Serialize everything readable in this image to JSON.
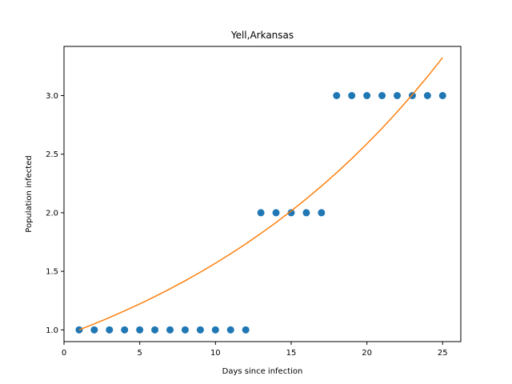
{
  "chart_data": {
    "type": "scatter",
    "title": "Yell,Arkansas",
    "xlabel": "Days since infection",
    "ylabel": "Population infected",
    "xlim": [
      0,
      26.2
    ],
    "ylim": [
      0.9,
      3.42
    ],
    "xticks": [
      0,
      5,
      10,
      15,
      20,
      25
    ],
    "yticks": [
      1.0,
      1.5,
      2.0,
      2.5,
      3.0
    ],
    "xtick_labels": [
      "0",
      "5",
      "10",
      "15",
      "20",
      "25"
    ],
    "ytick_labels": [
      "1.0",
      "1.5",
      "2.0",
      "2.5",
      "3.0"
    ],
    "grid": false,
    "legend": "none",
    "series": [
      {
        "kind": "scatter",
        "color": "#1f77b4",
        "x": [
          1,
          2,
          3,
          4,
          5,
          6,
          7,
          8,
          9,
          10,
          11,
          12,
          13,
          14,
          15,
          16,
          17,
          18,
          19,
          20,
          21,
          22,
          23,
          24,
          25
        ],
        "y": [
          1,
          1,
          1,
          1,
          1,
          1,
          1,
          1,
          1,
          1,
          1,
          1,
          2,
          2,
          2,
          2,
          2,
          3,
          3,
          3,
          3,
          3,
          3,
          3,
          3
        ]
      },
      {
        "kind": "line",
        "color": "#ff7f0e",
        "x": [
          1,
          2,
          3,
          4,
          5,
          6,
          7,
          8,
          9,
          10,
          11,
          12,
          13,
          14,
          15,
          16,
          17,
          18,
          19,
          20,
          21,
          22,
          23,
          24,
          25
        ],
        "y": [
          1.0,
          1.0513,
          1.1053,
          1.1621,
          1.2217,
          1.2844,
          1.3503,
          1.4196,
          1.4925,
          1.5691,
          1.6496,
          1.7343,
          1.8233,
          1.9169,
          2.0152,
          2.1187,
          2.2274,
          2.3417,
          2.4619,
          2.5883,
          2.7211,
          2.8608,
          3.0076,
          3.162,
          3.3242
        ]
      }
    ]
  }
}
